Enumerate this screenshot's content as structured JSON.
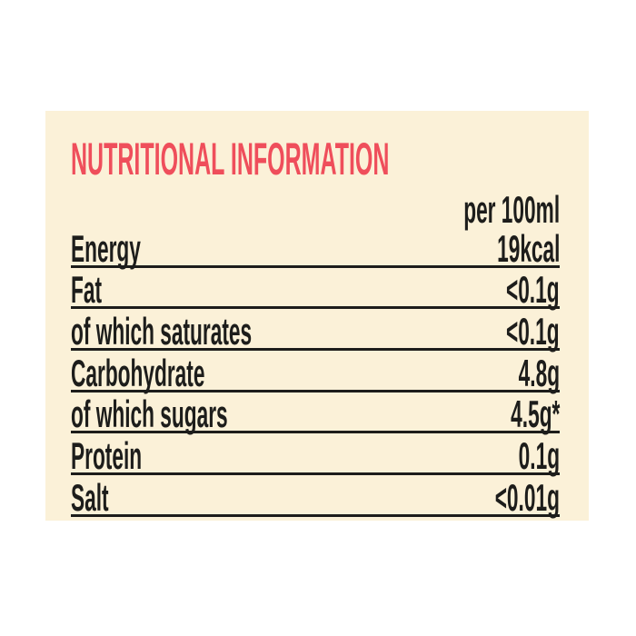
{
  "panel": {
    "title": "NUTRITIONAL INFORMATION",
    "column_header": "per 100ml",
    "rows": [
      {
        "label": "Energy",
        "value": "19kcal"
      },
      {
        "label": "Fat",
        "value": "<0.1g"
      },
      {
        "label": "of which saturates",
        "value": "<0.1g"
      },
      {
        "label": "Carbohydrate",
        "value": "4.8g"
      },
      {
        "label": "of which sugars",
        "value": "4.5g*"
      },
      {
        "label": "Protein",
        "value": "0.1g"
      },
      {
        "label": "Salt",
        "value": "<0.01g"
      }
    ],
    "colors": {
      "page_background": "#ffffff",
      "panel_background": "#fbf1d8",
      "title_color": "#ef4e5b",
      "text_color": "#1d1d1b",
      "rule_color": "#1d1d1b"
    }
  }
}
